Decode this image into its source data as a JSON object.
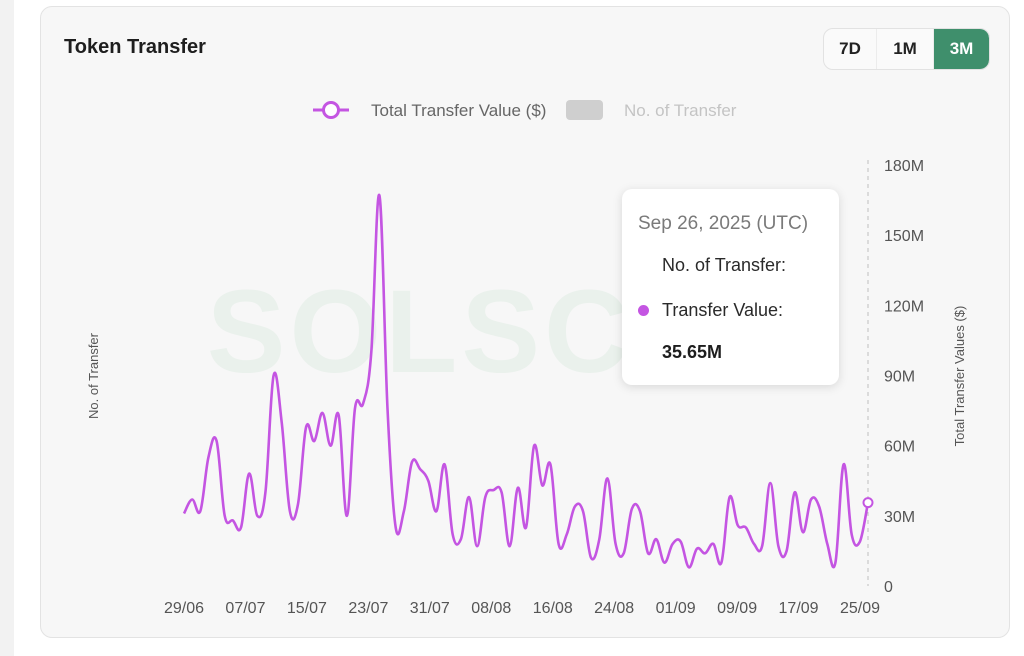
{
  "card": {
    "title": "Token Transfer",
    "ranges": [
      "7D",
      "1M",
      "3M"
    ],
    "active_range": "3M",
    "accent_color": "#3f8f6c"
  },
  "chart_data": {
    "type": "line",
    "legend": {
      "position": "top-center",
      "items": [
        {
          "label": "Total Transfer Value ($)",
          "color": "#c455e2",
          "active": true
        },
        {
          "label": "No. of Transfer",
          "color": "#cfcfcf",
          "active": false
        }
      ]
    },
    "left_axis_label": "No. of Transfer",
    "right_axis_label": "Total Transfer Values ($)",
    "y_ticks": [
      "0",
      "30M",
      "60M",
      "90M",
      "120M",
      "150M",
      "180M"
    ],
    "ylim": [
      0,
      180
    ],
    "y_unit": "M",
    "x_ticks": [
      "29/06",
      "07/07",
      "15/07",
      "23/07",
      "31/07",
      "08/08",
      "16/08",
      "24/08",
      "01/09",
      "09/09",
      "17/09",
      "25/09"
    ],
    "series": [
      {
        "name": "Total Transfer Value ($)",
        "color": "#c455e2",
        "values": [
          31,
          37,
          32,
          55,
          62,
          30,
          28,
          25,
          48,
          30,
          40,
          90,
          70,
          32,
          35,
          68,
          62,
          74,
          60,
          73,
          30,
          76,
          78,
          100,
          167,
          75,
          25,
          32,
          53,
          50,
          45,
          32,
          52,
          22,
          20,
          38,
          17,
          38,
          41,
          40,
          17,
          42,
          25,
          60,
          43,
          52,
          18,
          22,
          34,
          32,
          12,
          20,
          46,
          18,
          14,
          33,
          32,
          14,
          20,
          10,
          18,
          19,
          8,
          16,
          14,
          18,
          10,
          38,
          26,
          25,
          18,
          17,
          44,
          17,
          15,
          40,
          23,
          37,
          34,
          18,
          10,
          52,
          22,
          19,
          35.65
        ]
      }
    ],
    "highlighted_point": {
      "date": "Sep 26, 2025 (UTC)",
      "no_of_transfer_label": "No. of Transfer:",
      "transfer_value_label": "Transfer Value:",
      "transfer_value": "35.65M"
    }
  }
}
